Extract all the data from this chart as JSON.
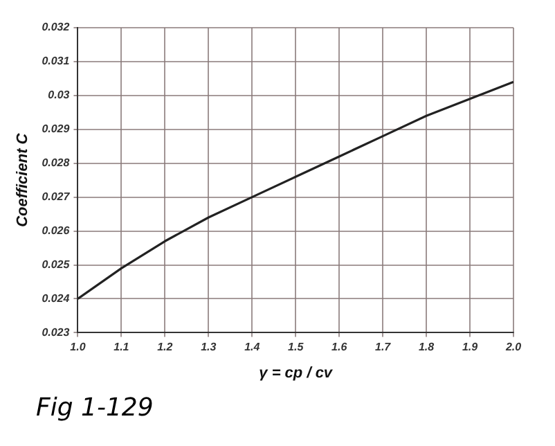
{
  "chart_data": {
    "type": "line",
    "xlabel": "γ = cp / cv",
    "ylabel": "Coefficient C",
    "annotations": [
      "Fig 1-129"
    ],
    "x": [
      1.0,
      1.1,
      1.2,
      1.3,
      1.4,
      1.5,
      1.6,
      1.7,
      1.8,
      1.9,
      2.0
    ],
    "series": [
      {
        "color": "#222222",
        "values": [
          0.024,
          0.0249,
          0.0257,
          0.0264,
          0.027,
          0.0276,
          0.0282,
          0.0288,
          0.0294,
          0.0299,
          0.0304
        ]
      }
    ],
    "xlim": [
      1.0,
      2.0
    ],
    "xticks": [
      {
        "value": 1.0,
        "label": "1.0"
      },
      1.1,
      1.2,
      1.3,
      1.4,
      1.5,
      1.6,
      1.7,
      1.8,
      1.9,
      {
        "value": 2.0,
        "label": "2.0"
      }
    ],
    "ylim": [
      0.023,
      0.032
    ],
    "yticks": [
      0.023,
      0.024,
      0.025,
      0.026,
      0.027,
      0.028,
      0.029,
      0.03,
      0.031,
      0.032
    ],
    "grid": true,
    "legend": false,
    "marker": "none",
    "line_style": "solid"
  }
}
